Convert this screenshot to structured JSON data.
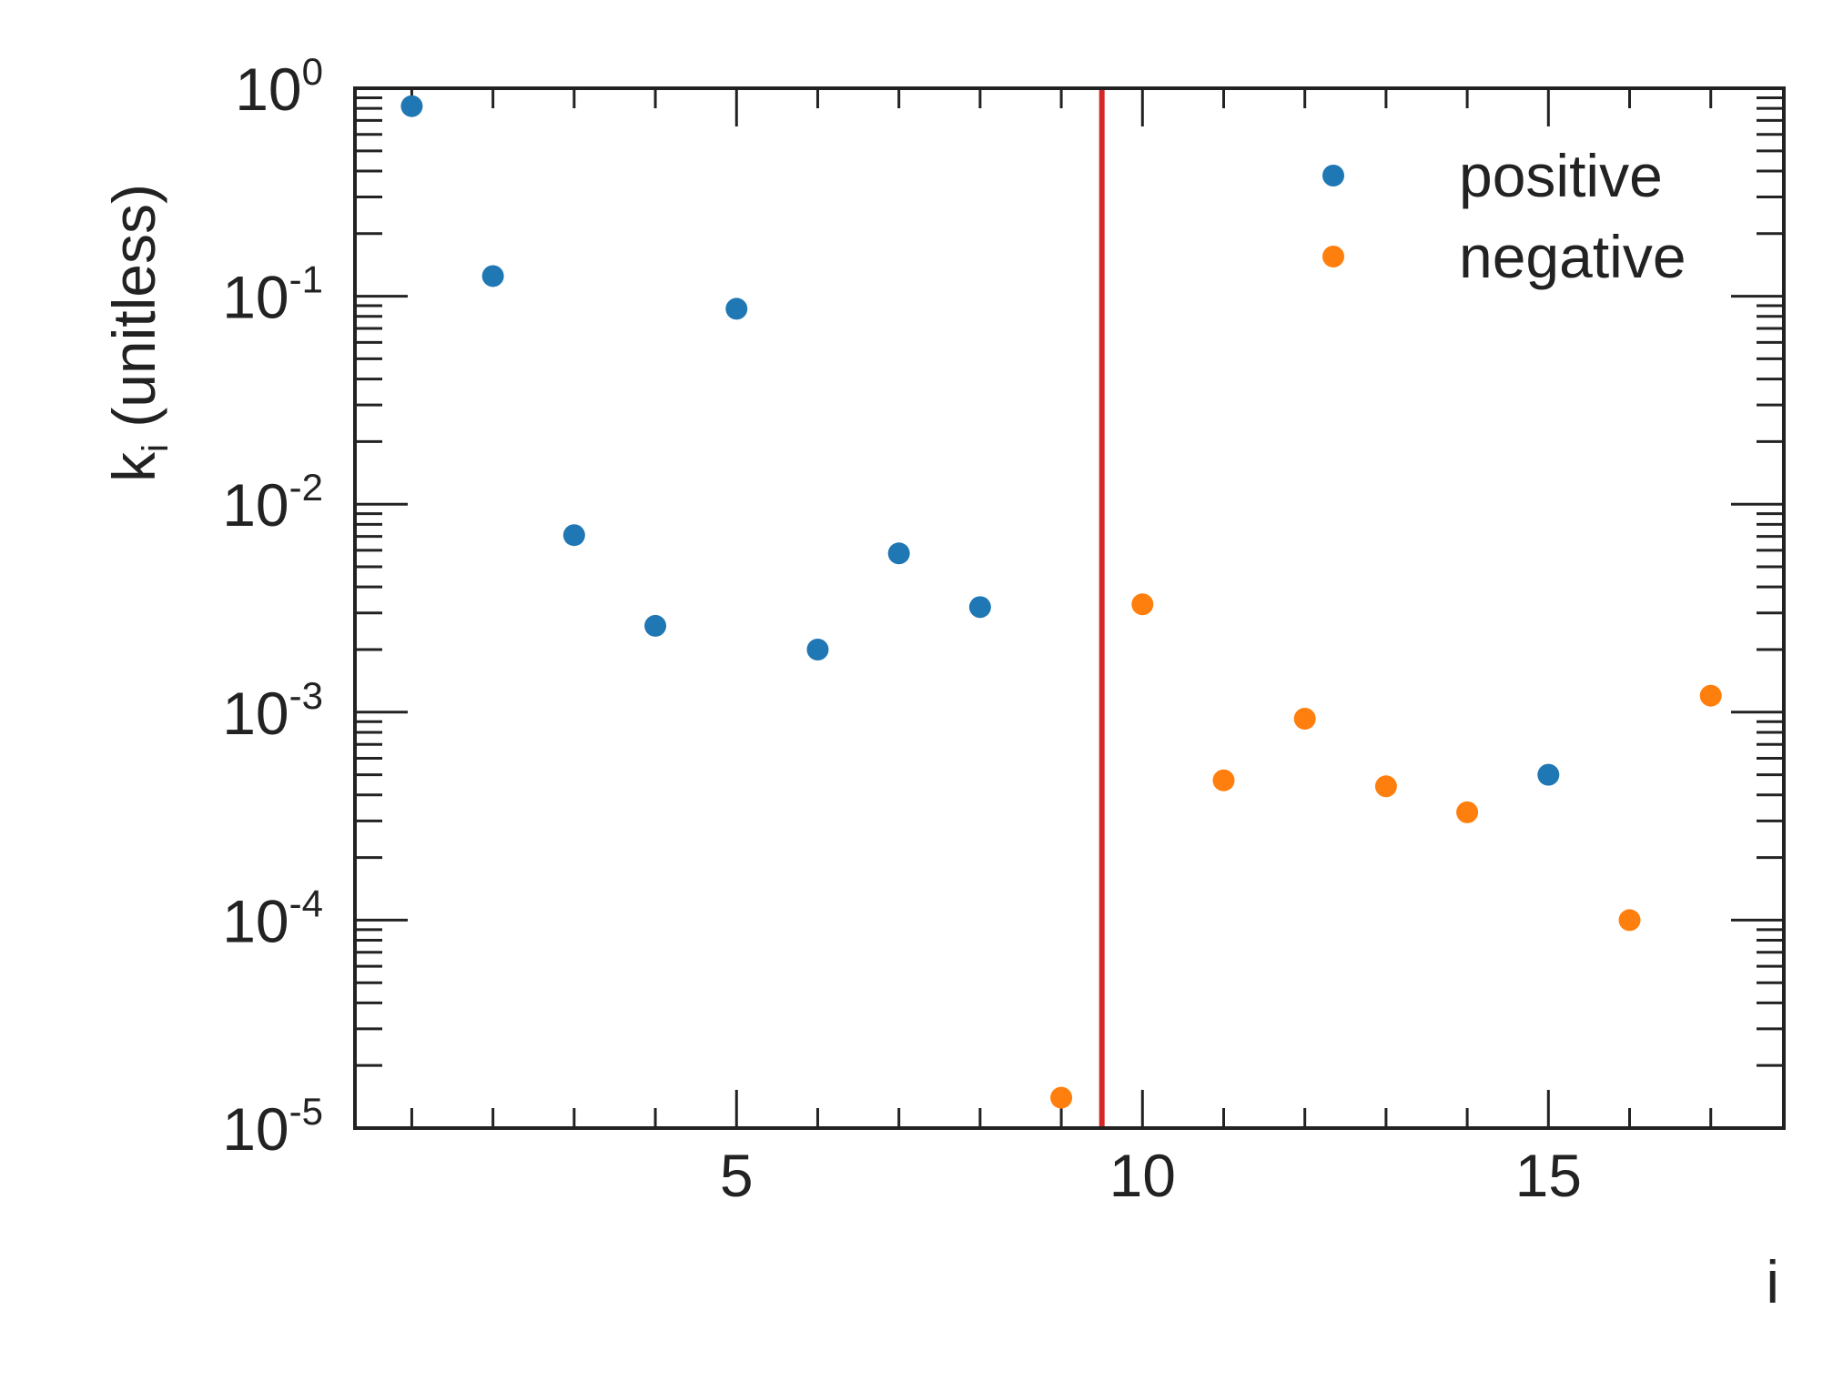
{
  "chart_data": {
    "type": "scatter",
    "xlabel": "i",
    "ylabel_main": "k",
    "ylabel_sub": "i",
    "ylabel_rest": " (unitless)",
    "xlim": [
      0.3,
      17.9
    ],
    "ylim": [
      1e-05,
      1
    ],
    "y_scale": "log",
    "x_ticks": [
      5,
      10,
      15
    ],
    "x_tick_labels": [
      "5",
      "10",
      "15"
    ],
    "y_ticks": [
      {
        "value": 1,
        "base": "10",
        "exp": "0"
      },
      {
        "value": 0.1,
        "base": "10",
        "exp": "-1"
      },
      {
        "value": 0.01,
        "base": "10",
        "exp": "-2"
      },
      {
        "value": 0.001,
        "base": "10",
        "exp": "-3"
      },
      {
        "value": 0.0001,
        "base": "10",
        "exp": "-4"
      },
      {
        "value": 1e-05,
        "base": "10",
        "exp": "-5"
      }
    ],
    "grid": false,
    "legend_position": "top-right",
    "vline": {
      "x": 9.5,
      "color": "#d62728"
    },
    "series": [
      {
        "name": "positive",
        "color": "#1f77b4",
        "points": [
          {
            "x": 1,
            "y": 0.82
          },
          {
            "x": 2,
            "y": 0.125
          },
          {
            "x": 3,
            "y": 0.0071
          },
          {
            "x": 4,
            "y": 0.0026
          },
          {
            "x": 5,
            "y": 0.087
          },
          {
            "x": 6,
            "y": 0.002
          },
          {
            "x": 7,
            "y": 0.0058
          },
          {
            "x": 8,
            "y": 0.0032
          },
          {
            "x": 15,
            "y": 0.0005
          }
        ]
      },
      {
        "name": "negative",
        "color": "#ff7f0e",
        "points": [
          {
            "x": 9,
            "y": 1.4e-05
          },
          {
            "x": 10,
            "y": 0.0033
          },
          {
            "x": 11,
            "y": 0.00047
          },
          {
            "x": 12,
            "y": 0.00093
          },
          {
            "x": 13,
            "y": 0.00044
          },
          {
            "x": 14,
            "y": 0.00033
          },
          {
            "x": 16,
            "y": 0.0001
          },
          {
            "x": 17,
            "y": 0.0012
          }
        ]
      }
    ]
  }
}
